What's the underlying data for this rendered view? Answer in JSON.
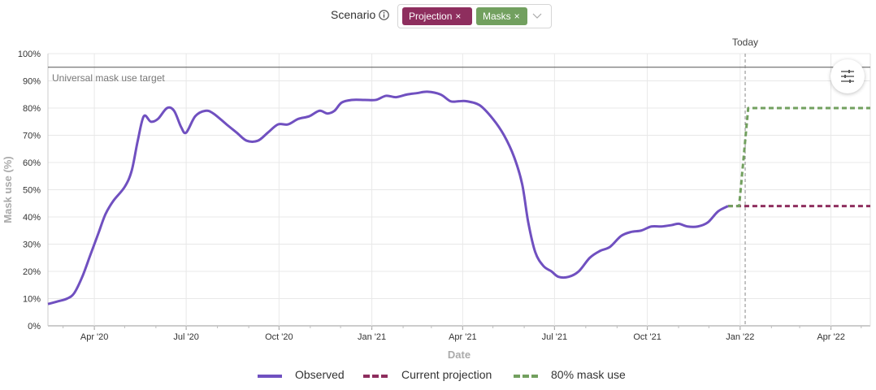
{
  "scenario": {
    "label": "Scenario",
    "info_icon": "info-icon",
    "chips": [
      {
        "label": "Projection",
        "remove": "×",
        "color": "#8e2e5e"
      },
      {
        "label": "Masks",
        "remove": "×",
        "color": "#72a05f"
      }
    ],
    "dropdown_icon": "chevron-down-icon"
  },
  "filter_button_icon": "sliders-icon",
  "colors": {
    "observed": "#7050c0",
    "current_projection": "#8e2e5e",
    "mask80": "#72a05f",
    "target_line": "#555555",
    "grid": "#e8e8e8",
    "today_line": "#888888"
  },
  "chart_data": {
    "type": "line",
    "xlabel": "Date",
    "ylabel": "Mask use (%)",
    "x_ticks": [
      "Apr '20",
      "Jul '20",
      "Oct '20",
      "Jan '21",
      "Apr '21",
      "Jul '21",
      "Oct '21",
      "Jan '22",
      "Apr '22"
    ],
    "x_tick_dates": [
      "2020-04-01",
      "2020-07-01",
      "2020-10-01",
      "2021-01-01",
      "2021-04-01",
      "2021-07-01",
      "2021-10-01",
      "2022-01-01",
      "2022-04-01"
    ],
    "x_range": [
      "2020-02-15",
      "2022-05-10"
    ],
    "y_ticks": [
      "0%",
      "10%",
      "20%",
      "30%",
      "40%",
      "50%",
      "60%",
      "70%",
      "80%",
      "90%",
      "100%"
    ],
    "ylim": [
      0,
      100
    ],
    "reference_line": {
      "label": "Universal mask use target",
      "value": 95
    },
    "today": {
      "label": "Today",
      "date": "2022-01-06"
    },
    "grid": true,
    "legend_position": "bottom",
    "series": [
      {
        "name": "Observed",
        "style": "solid",
        "points": [
          [
            "2020-02-15",
            8
          ],
          [
            "2020-02-25",
            9
          ],
          [
            "2020-03-05",
            10
          ],
          [
            "2020-03-12",
            12
          ],
          [
            "2020-03-20",
            18
          ],
          [
            "2020-03-28",
            26
          ],
          [
            "2020-04-05",
            34
          ],
          [
            "2020-04-12",
            41
          ],
          [
            "2020-04-20",
            46
          ],
          [
            "2020-05-01",
            51
          ],
          [
            "2020-05-08",
            57
          ],
          [
            "2020-05-14",
            68
          ],
          [
            "2020-05-20",
            77
          ],
          [
            "2020-05-27",
            75
          ],
          [
            "2020-06-03",
            76
          ],
          [
            "2020-06-12",
            80
          ],
          [
            "2020-06-19",
            79
          ],
          [
            "2020-06-26",
            73
          ],
          [
            "2020-07-01",
            71
          ],
          [
            "2020-07-10",
            77
          ],
          [
            "2020-07-20",
            79
          ],
          [
            "2020-07-28",
            78
          ],
          [
            "2020-08-10",
            74
          ],
          [
            "2020-08-20",
            71
          ],
          [
            "2020-08-30",
            68
          ],
          [
            "2020-09-10",
            68
          ],
          [
            "2020-09-20",
            71
          ],
          [
            "2020-09-30",
            74
          ],
          [
            "2020-10-10",
            74
          ],
          [
            "2020-10-20",
            76
          ],
          [
            "2020-10-31",
            77
          ],
          [
            "2020-11-10",
            79
          ],
          [
            "2020-11-18",
            78
          ],
          [
            "2020-11-25",
            79
          ],
          [
            "2020-12-02",
            82
          ],
          [
            "2020-12-12",
            83
          ],
          [
            "2020-12-25",
            83
          ],
          [
            "2021-01-05",
            83
          ],
          [
            "2021-01-15",
            84.5
          ],
          [
            "2021-01-25",
            84
          ],
          [
            "2021-02-05",
            85
          ],
          [
            "2021-02-15",
            85.5
          ],
          [
            "2021-02-25",
            86
          ],
          [
            "2021-03-10",
            85
          ],
          [
            "2021-03-20",
            82.5
          ],
          [
            "2021-03-28",
            82.5
          ],
          [
            "2021-04-05",
            82.5
          ],
          [
            "2021-04-18",
            81
          ],
          [
            "2021-05-01",
            76
          ],
          [
            "2021-05-12",
            70
          ],
          [
            "2021-05-22",
            62
          ],
          [
            "2021-05-30",
            52
          ],
          [
            "2021-06-05",
            38
          ],
          [
            "2021-06-12",
            27
          ],
          [
            "2021-06-20",
            22
          ],
          [
            "2021-06-28",
            20
          ],
          [
            "2021-07-05",
            18
          ],
          [
            "2021-07-15",
            18
          ],
          [
            "2021-07-25",
            20
          ],
          [
            "2021-08-05",
            25
          ],
          [
            "2021-08-15",
            27.5
          ],
          [
            "2021-08-25",
            29
          ],
          [
            "2021-09-05",
            33
          ],
          [
            "2021-09-15",
            34.5
          ],
          [
            "2021-09-25",
            35
          ],
          [
            "2021-10-05",
            36.5
          ],
          [
            "2021-10-15",
            36.5
          ],
          [
            "2021-10-25",
            37
          ],
          [
            "2021-11-01",
            37.5
          ],
          [
            "2021-11-10",
            36.5
          ],
          [
            "2021-11-20",
            36.5
          ],
          [
            "2021-11-30",
            38
          ],
          [
            "2021-12-10",
            42
          ],
          [
            "2021-12-20",
            44
          ]
        ]
      },
      {
        "name": "Current projection",
        "style": "dashed",
        "points": [
          [
            "2021-12-20",
            44
          ],
          [
            "2022-05-10",
            44
          ]
        ]
      },
      {
        "name": "80% mask use",
        "style": "dashed",
        "points": [
          [
            "2021-12-20",
            44
          ],
          [
            "2021-12-31",
            44
          ],
          [
            "2022-01-09",
            80
          ],
          [
            "2022-05-10",
            80
          ]
        ]
      }
    ]
  }
}
